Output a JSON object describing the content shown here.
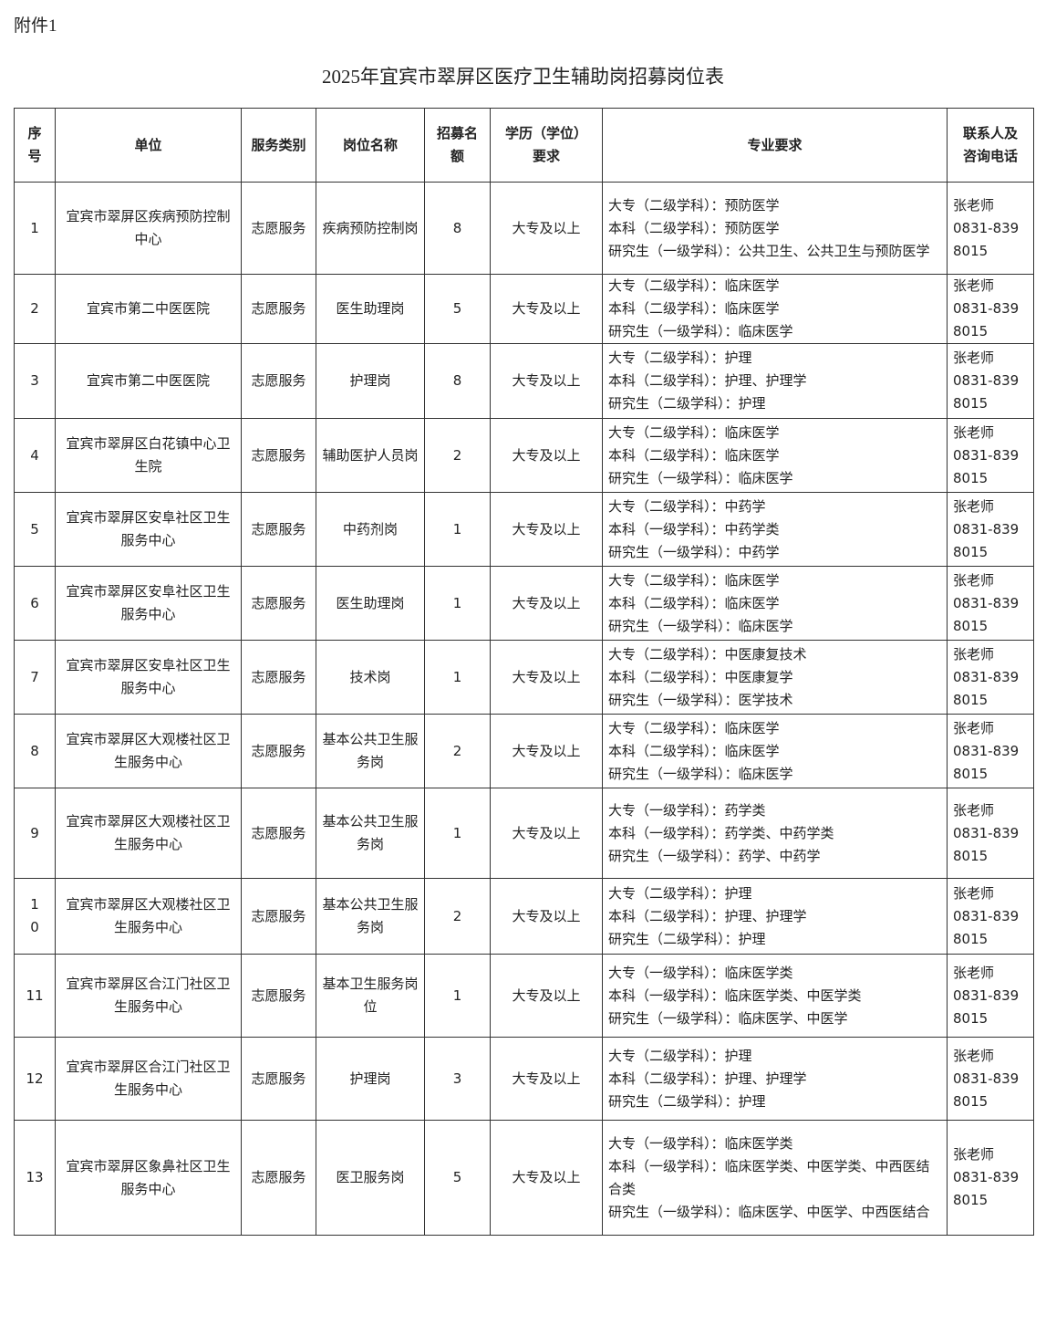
{
  "attachment_label": "附件1",
  "title": "2025年宜宾市翠屏区医疗卫生辅助岗招募岗位表",
  "headers": [
    "序号",
    "单位",
    "服务类别",
    "岗位名称",
    "招募名额",
    "学历（学位）要求",
    "专业要求",
    "联系人及咨询电话"
  ],
  "rows": [
    {
      "seq": "1",
      "unit": "宜宾市翠屏区疾病预防控制中心",
      "category": "志愿服务",
      "position": "疾病预防控制岗",
      "quota": "8",
      "education": "大专及以上",
      "majors": [
        "大专（二级学科）：预防医学",
        "本科（二级学科）：预防医学",
        "研究生（一级学科）：公共卫生、公共卫生与预防医学"
      ],
      "contact_name": "张老师",
      "contact_phone": "0831-8398015"
    },
    {
      "seq": "2",
      "unit": "宜宾市第二中医医院",
      "category": "志愿服务",
      "position": "医生助理岗",
      "quota": "5",
      "education": "大专及以上",
      "majors": [
        "大专（二级学科）：临床医学",
        "本科（二级学科）：临床医学",
        "研究生（一级学科）：临床医学"
      ],
      "contact_name": "张老师",
      "contact_phone": "0831-8398015"
    },
    {
      "seq": "3",
      "unit": "宜宾市第二中医医院",
      "category": "志愿服务",
      "position": "护理岗",
      "quota": "8",
      "education": "大专及以上",
      "majors": [
        "大专（二级学科）：护理",
        "本科（二级学科）：护理、护理学",
        "研究生（二级学科）：护理"
      ],
      "contact_name": "张老师",
      "contact_phone": "0831-8398015"
    },
    {
      "seq": "4",
      "unit": "宜宾市翠屏区白花镇中心卫生院",
      "category": "志愿服务",
      "position": "辅助医护人员岗",
      "quota": "2",
      "education": "大专及以上",
      "majors": [
        "大专（二级学科）：临床医学",
        "本科（二级学科）：临床医学",
        "研究生（一级学科）：临床医学"
      ],
      "contact_name": "张老师",
      "contact_phone": "0831-8398015"
    },
    {
      "seq": "5",
      "unit": "宜宾市翠屏区安阜社区卫生服务中心",
      "category": "志愿服务",
      "position": "中药剂岗",
      "quota": "1",
      "education": "大专及以上",
      "majors": [
        "大专（二级学科）：中药学",
        "本科（一级学科）：中药学类",
        "研究生（一级学科）：中药学"
      ],
      "contact_name": "张老师",
      "contact_phone": "0831-8398015"
    },
    {
      "seq": "6",
      "unit": "宜宾市翠屏区安阜社区卫生服务中心",
      "category": "志愿服务",
      "position": "医生助理岗",
      "quota": "1",
      "education": "大专及以上",
      "majors": [
        "大专（二级学科）：临床医学",
        "本科（二级学科）：临床医学",
        "研究生（一级学科）：临床医学"
      ],
      "contact_name": "张老师",
      "contact_phone": "0831-8398015"
    },
    {
      "seq": "7",
      "unit": "宜宾市翠屏区安阜社区卫生服务中心",
      "category": "志愿服务",
      "position": "技术岗",
      "quota": "1",
      "education": "大专及以上",
      "majors": [
        "大专（二级学科）：中医康复技术",
        "本科（二级学科）：中医康复学",
        "研究生（一级学科）：医学技术"
      ],
      "contact_name": "张老师",
      "contact_phone": "0831-8398015"
    },
    {
      "seq": "8",
      "unit": "宜宾市翠屏区大观楼社区卫生服务中心",
      "category": "志愿服务",
      "position": "基本公共卫生服务岗",
      "quota": "2",
      "education": "大专及以上",
      "majors": [
        "大专（二级学科）：临床医学",
        "本科（二级学科）：临床医学",
        "研究生（一级学科）：临床医学"
      ],
      "contact_name": "张老师",
      "contact_phone": "0831-8398015"
    },
    {
      "seq": "9",
      "unit": "宜宾市翠屏区大观楼社区卫生服务中心",
      "category": "志愿服务",
      "position": "基本公共卫生服务岗",
      "quota": "1",
      "education": "大专及以上",
      "majors": [
        "大专（一级学科）：药学类",
        "本科（一级学科）：药学类、中药学类",
        "研究生（一级学科）：药学、中药学"
      ],
      "contact_name": "张老师",
      "contact_phone": "0831-8398015"
    },
    {
      "seq": "10",
      "unit": "宜宾市翠屏区大观楼社区卫生服务中心",
      "category": "志愿服务",
      "position": "基本公共卫生服务岗",
      "quota": "2",
      "education": "大专及以上",
      "majors": [
        "大专（二级学科）：护理",
        "本科（二级学科）：护理、护理学",
        "研究生（二级学科）：护理"
      ],
      "contact_name": "张老师",
      "contact_phone": "0831-8398015"
    },
    {
      "seq": "11",
      "unit": "宜宾市翠屏区合江门社区卫生服务中心",
      "category": "志愿服务",
      "position": "基本卫生服务岗位",
      "quota": "1",
      "education": "大专及以上",
      "majors": [
        "大专（一级学科）：临床医学类",
        "本科（一级学科）：临床医学类、中医学类",
        "研究生（一级学科）：临床医学、中医学"
      ],
      "contact_name": "张老师",
      "contact_phone": "0831-8398015"
    },
    {
      "seq": "12",
      "unit": "宜宾市翠屏区合江门社区卫生服务中心",
      "category": "志愿服务",
      "position": "护理岗",
      "quota": "3",
      "education": "大专及以上",
      "majors": [
        "大专（二级学科）：护理",
        "本科（二级学科）：护理、护理学",
        "研究生（二级学科）：护理"
      ],
      "contact_name": "张老师",
      "contact_phone": "0831-8398015"
    },
    {
      "seq": "13",
      "unit": "宜宾市翠屏区象鼻社区卫生服务中心",
      "category": "志愿服务",
      "position": "医卫服务岗",
      "quota": "5",
      "education": "大专及以上",
      "majors": [
        "大专（一级学科）：临床医学类",
        "本科（一级学科）：临床医学类、中医学类、中西医结合类",
        "研究生（一级学科）：临床医学、中医学、中西医结合"
      ],
      "contact_name": "张老师",
      "contact_phone": "0831-8398015"
    }
  ]
}
